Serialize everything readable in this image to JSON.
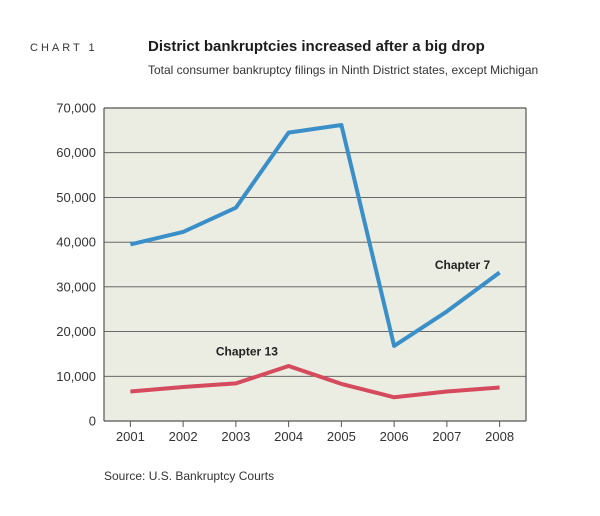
{
  "header": {
    "chart_number": "CHART 1",
    "title": "District bankruptcies increased after a big drop",
    "subtitle": "Total consumer bankruptcy filings in Ninth District states, except Michigan"
  },
  "source": "Source: U.S. Bankruptcy Courts",
  "colors": {
    "plot_background": "#ebede3",
    "chapter7": "#3a8fc9",
    "chapter13": "#d54a5c",
    "gridline": "#555555"
  },
  "chart_data": {
    "type": "line",
    "title": "District bankruptcies increased after a big drop",
    "subtitle": "Total consumer bankruptcy filings in Ninth District states, except Michigan",
    "x": [
      "2001",
      "2002",
      "2003",
      "2004",
      "2005",
      "2006",
      "2007",
      "2008"
    ],
    "ylim": [
      0,
      70000
    ],
    "y_ticks": [
      "0",
      "10,000",
      "20,000",
      "30,000",
      "40,000",
      "50,000",
      "60,000",
      "70,000"
    ],
    "grid": true,
    "legend": "direct labels",
    "series": [
      {
        "name": "Chapter 7",
        "values": [
          39500,
          42300,
          47700,
          64500,
          66200,
          16800,
          24500,
          33200
        ]
      },
      {
        "name": "Chapter 13",
        "values": [
          6600,
          7600,
          8400,
          12300,
          8300,
          5300,
          6600,
          7500
        ]
      }
    ]
  }
}
